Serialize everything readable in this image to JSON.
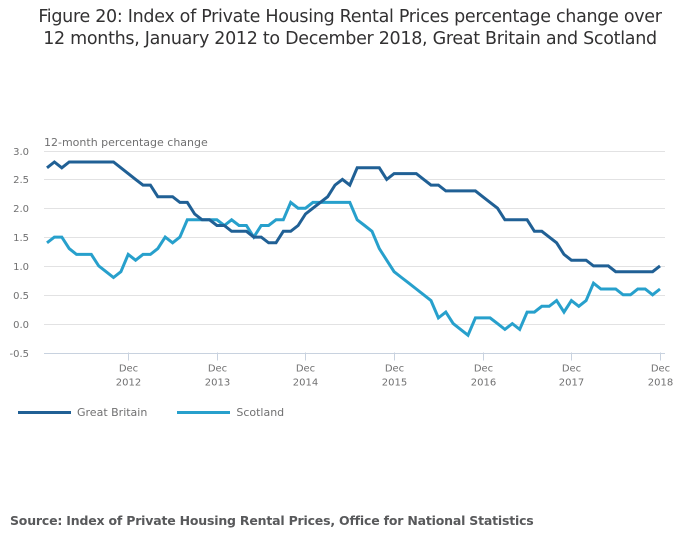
{
  "title_line1": "Figure 20: Index of Private Housing Rental Prices percentage change over",
  "title_line2": "12 months, January 2012 to December 2018, Great Britain and Scotland",
  "source": "Source: Index of Private Housing Rental Prices, Office for National Statistics",
  "chart_data": {
    "type": "line",
    "title": "Figure 20: Index of Private Housing Rental Prices percentage change over 12 months, January 2012 to December 2018, Great Britain and Scotland",
    "xlabel": "",
    "ylabel": "12-month percentage change",
    "ylim": [
      -0.5,
      3.0
    ],
    "yticks": [
      "3.0",
      "2.5",
      "2.0",
      "1.5",
      "1.0",
      "0.5",
      "0.0",
      "-0.5"
    ],
    "ytick_values": [
      3.0,
      2.5,
      2.0,
      1.5,
      1.0,
      0.5,
      0.0,
      -0.5
    ],
    "x_start": "Jan 2012",
    "x_end": "Dec 2018",
    "n_points": 84,
    "xticks": [
      {
        "month_index": 11,
        "line1": "Dec",
        "line2": "2012"
      },
      {
        "month_index": 23,
        "line1": "Dec",
        "line2": "2013"
      },
      {
        "month_index": 35,
        "line1": "Dec",
        "line2": "2014"
      },
      {
        "month_index": 47,
        "line1": "Dec",
        "line2": "2015"
      },
      {
        "month_index": 59,
        "line1": "Dec",
        "line2": "2016"
      },
      {
        "month_index": 71,
        "line1": "Dec",
        "line2": "2017"
      },
      {
        "month_index": 83,
        "line1": "Dec",
        "line2": "2018"
      }
    ],
    "grid": true,
    "legend_position": "bottom-left",
    "series": [
      {
        "name": "Great Britain",
        "color": "#206095",
        "values": [
          2.7,
          2.8,
          2.7,
          2.8,
          2.8,
          2.8,
          2.8,
          2.8,
          2.8,
          2.8,
          2.7,
          2.6,
          2.5,
          2.4,
          2.4,
          2.2,
          2.2,
          2.2,
          2.1,
          2.1,
          1.9,
          1.8,
          1.8,
          1.7,
          1.7,
          1.6,
          1.6,
          1.6,
          1.5,
          1.5,
          1.4,
          1.4,
          1.6,
          1.6,
          1.7,
          1.9,
          2.0,
          2.1,
          2.2,
          2.4,
          2.5,
          2.4,
          2.7,
          2.7,
          2.7,
          2.7,
          2.5,
          2.6,
          2.6,
          2.6,
          2.6,
          2.5,
          2.4,
          2.4,
          2.3,
          2.3,
          2.3,
          2.3,
          2.3,
          2.2,
          2.1,
          2.0,
          1.8,
          1.8,
          1.8,
          1.8,
          1.6,
          1.6,
          1.5,
          1.4,
          1.2,
          1.1,
          1.1,
          1.1,
          1.0,
          1.0,
          1.0,
          0.9,
          0.9,
          0.9,
          0.9,
          0.9,
          0.9,
          1.0
        ]
      },
      {
        "name": "Scotland",
        "color": "#27a0cc",
        "values": [
          1.4,
          1.5,
          1.5,
          1.3,
          1.2,
          1.2,
          1.2,
          1.0,
          0.9,
          0.8,
          0.9,
          1.2,
          1.1,
          1.2,
          1.2,
          1.3,
          1.5,
          1.4,
          1.5,
          1.8,
          1.8,
          1.8,
          1.8,
          1.8,
          1.7,
          1.8,
          1.7,
          1.7,
          1.5,
          1.7,
          1.7,
          1.8,
          1.8,
          2.1,
          2.0,
          2.0,
          2.1,
          2.1,
          2.1,
          2.1,
          2.1,
          2.1,
          1.8,
          1.7,
          1.6,
          1.3,
          1.1,
          0.9,
          0.8,
          0.7,
          0.6,
          0.5,
          0.4,
          0.1,
          0.2,
          0.0,
          -0.1,
          -0.2,
          0.1,
          0.1,
          0.1,
          0.0,
          -0.1,
          0.0,
          -0.1,
          0.2,
          0.2,
          0.3,
          0.3,
          0.4,
          0.2,
          0.4,
          0.3,
          0.4,
          0.7,
          0.6,
          0.6,
          0.6,
          0.5,
          0.5,
          0.6,
          0.6,
          0.5,
          0.6
        ]
      }
    ]
  }
}
